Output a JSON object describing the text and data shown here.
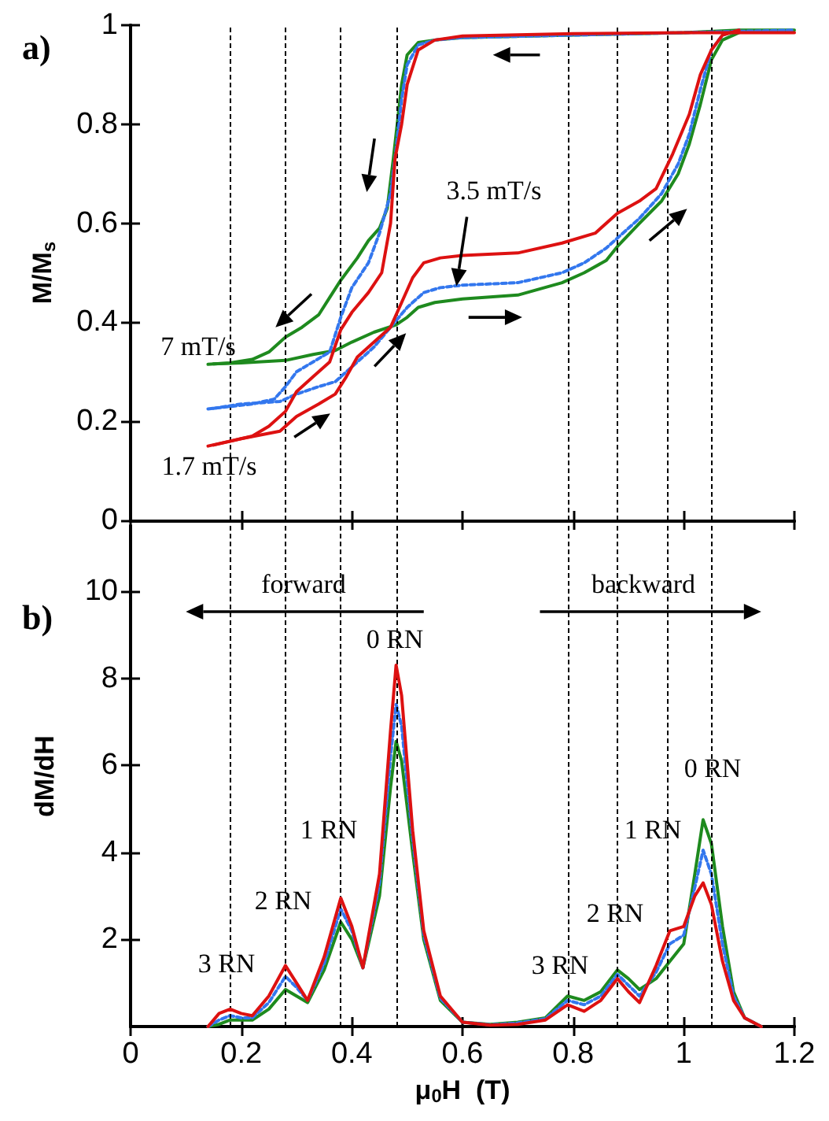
{
  "chart_data": [
    {
      "type": "line",
      "ylabel": "M/M$_{s}$",
      "xlim": [
        0,
        1.2
      ],
      "xticks": [
        0,
        0.2,
        0.4,
        0.6,
        0.8,
        1,
        1.2
      ],
      "ylim": [
        0,
        1
      ],
      "yticks": [
        0,
        0.2,
        0.4,
        0.6,
        0.8,
        1
      ],
      "tick_labels": "y",
      "series": [
        {
          "color": "#1e8a1e",
          "line_style": "solid",
          "x": [
            0.14,
            0.18,
            0.22,
            0.25,
            0.28,
            0.31,
            0.34,
            0.36,
            0.38,
            0.41,
            0.43,
            0.45,
            0.464,
            0.475,
            0.49,
            0.5,
            0.52,
            0.55,
            0.6,
            0.8,
            1.0,
            1.1,
            1.2
          ],
          "values": [
            0.315,
            0.318,
            0.325,
            0.34,
            0.37,
            0.39,
            0.415,
            0.45,
            0.485,
            0.53,
            0.565,
            0.59,
            0.63,
            0.73,
            0.88,
            0.94,
            0.965,
            0.97,
            0.975,
            0.98,
            0.985,
            0.99,
            0.99
          ]
        },
        {
          "color": "#1e8a1e",
          "line_style": "solid",
          "x": [
            0.15,
            0.2,
            0.28,
            0.33,
            0.37,
            0.4,
            0.44,
            0.48,
            0.5,
            0.52,
            0.55,
            0.6,
            0.7,
            0.78,
            0.82,
            0.86,
            0.88,
            0.92,
            0.96,
            0.99,
            1.01,
            1.03,
            1.05,
            1.07,
            1.1
          ],
          "values": [
            0.316,
            0.318,
            0.323,
            0.335,
            0.343,
            0.36,
            0.38,
            0.395,
            0.41,
            0.43,
            0.44,
            0.447,
            0.455,
            0.48,
            0.5,
            0.525,
            0.553,
            0.6,
            0.645,
            0.7,
            0.76,
            0.84,
            0.93,
            0.97,
            0.985
          ]
        },
        {
          "color": "#3377ee",
          "line_style": "dashed",
          "x": [
            0.14,
            0.18,
            0.22,
            0.26,
            0.28,
            0.3,
            0.33,
            0.36,
            0.38,
            0.4,
            0.43,
            0.45,
            0.47,
            0.48,
            0.49,
            0.5,
            0.52,
            0.55,
            0.6,
            0.8,
            1.0,
            1.2
          ],
          "values": [
            0.225,
            0.23,
            0.235,
            0.245,
            0.27,
            0.3,
            0.32,
            0.34,
            0.41,
            0.47,
            0.52,
            0.58,
            0.66,
            0.75,
            0.85,
            0.92,
            0.96,
            0.97,
            0.975,
            0.98,
            0.985,
            0.99
          ]
        },
        {
          "color": "#3377ee",
          "line_style": "dashed",
          "x": [
            0.15,
            0.2,
            0.27,
            0.3,
            0.34,
            0.37,
            0.4,
            0.44,
            0.47,
            0.5,
            0.53,
            0.56,
            0.6,
            0.7,
            0.78,
            0.82,
            0.86,
            0.88,
            0.92,
            0.96,
            0.99,
            1.01,
            1.03,
            1.05,
            1.07,
            1.1
          ],
          "values": [
            0.226,
            0.235,
            0.24,
            0.255,
            0.27,
            0.28,
            0.31,
            0.35,
            0.39,
            0.43,
            0.46,
            0.47,
            0.475,
            0.48,
            0.5,
            0.52,
            0.55,
            0.57,
            0.61,
            0.66,
            0.72,
            0.78,
            0.87,
            0.95,
            0.98,
            0.99
          ]
        },
        {
          "color": "#dd1111",
          "line_style": "solid",
          "x": [
            0.14,
            0.18,
            0.22,
            0.25,
            0.28,
            0.3,
            0.33,
            0.36,
            0.38,
            0.4,
            0.43,
            0.454,
            0.47,
            0.478,
            0.49,
            0.5,
            0.52,
            0.55,
            0.6,
            0.8,
            1.0,
            1.2
          ],
          "values": [
            0.15,
            0.16,
            0.17,
            0.19,
            0.22,
            0.26,
            0.29,
            0.32,
            0.385,
            0.42,
            0.46,
            0.5,
            0.6,
            0.73,
            0.8,
            0.88,
            0.95,
            0.97,
            0.978,
            0.983,
            0.985,
            0.985
          ]
        },
        {
          "color": "#dd1111",
          "line_style": "solid",
          "x": [
            0.15,
            0.2,
            0.27,
            0.3,
            0.34,
            0.37,
            0.39,
            0.41,
            0.44,
            0.47,
            0.49,
            0.51,
            0.53,
            0.56,
            0.6,
            0.7,
            0.78,
            0.84,
            0.88,
            0.92,
            0.95,
            0.98,
            1.01,
            1.03,
            1.05,
            1.07,
            1.1
          ],
          "values": [
            0.152,
            0.165,
            0.18,
            0.21,
            0.235,
            0.255,
            0.29,
            0.33,
            0.36,
            0.39,
            0.44,
            0.49,
            0.52,
            0.53,
            0.535,
            0.54,
            0.56,
            0.58,
            0.62,
            0.645,
            0.67,
            0.74,
            0.82,
            0.9,
            0.95,
            0.98,
            0.99
          ]
        }
      ],
      "ref_lines": [
        {
          "axis": "x",
          "value": 0.18,
          "color": "#000000",
          "line_style": "dashed"
        },
        {
          "axis": "x",
          "value": 0.28,
          "color": "#000000",
          "line_style": "dashed"
        },
        {
          "axis": "x",
          "value": 0.38,
          "color": "#000000",
          "line_style": "dashed"
        },
        {
          "axis": "x",
          "value": 0.48,
          "color": "#000000",
          "line_style": "dashed"
        },
        {
          "axis": "x",
          "value": 0.79,
          "color": "#000000",
          "line_style": "dashed"
        },
        {
          "axis": "x",
          "value": 0.88,
          "color": "#000000",
          "line_style": "dashed"
        },
        {
          "axis": "x",
          "value": 0.97,
          "color": "#000000",
          "line_style": "dashed"
        },
        {
          "axis": "x",
          "value": 1.05,
          "color": "#000000",
          "line_style": "dashed"
        }
      ],
      "annotations": [
        "a)",
        "7 mT/s",
        "1.7 mT/s",
        "3.5 mT/s"
      ]
    },
    {
      "type": "line",
      "ylabel": "dM/dH",
      "xlabel": "μ$_{0}$H  (T)",
      "xlim": [
        0,
        1.2
      ],
      "xticks": [
        0,
        0.2,
        0.4,
        0.6,
        0.8,
        1,
        1.2
      ],
      "ylim": [
        0,
        11.5
      ],
      "yticks": [
        2,
        4,
        6,
        8,
        10
      ],
      "series": [
        {
          "color": "#1e8a1e",
          "line_style": "solid",
          "x": [
            0.14,
            0.16,
            0.18,
            0.2,
            0.22,
            0.25,
            0.28,
            0.3,
            0.32,
            0.35,
            0.38,
            0.4,
            0.42,
            0.45,
            0.47,
            0.48,
            0.49,
            0.51,
            0.53,
            0.56,
            0.6,
            0.65,
            0.7,
            0.75,
            0.79,
            0.82,
            0.85,
            0.88,
            0.9,
            0.92,
            0.95,
            0.975,
            1.0,
            1.02,
            1.035,
            1.05,
            1.07,
            1.09,
            1.11,
            1.14
          ],
          "values": [
            0,
            0.05,
            0.15,
            0.15,
            0.15,
            0.4,
            0.85,
            0.7,
            0.55,
            1.3,
            2.4,
            2.0,
            1.35,
            3.0,
            5.5,
            6.55,
            6.1,
            4.0,
            2.0,
            0.6,
            0.1,
            0.05,
            0.1,
            0.2,
            0.7,
            0.6,
            0.8,
            1.3,
            1.1,
            0.85,
            1.1,
            1.5,
            1.9,
            3.5,
            4.75,
            4.2,
            2.3,
            0.8,
            0.2,
            0
          ]
        },
        {
          "color": "#3377ee",
          "line_style": "dashed",
          "x": [
            0.14,
            0.16,
            0.18,
            0.2,
            0.22,
            0.25,
            0.28,
            0.3,
            0.32,
            0.35,
            0.38,
            0.4,
            0.42,
            0.45,
            0.47,
            0.48,
            0.49,
            0.51,
            0.53,
            0.56,
            0.6,
            0.65,
            0.7,
            0.75,
            0.79,
            0.82,
            0.85,
            0.88,
            0.9,
            0.92,
            0.95,
            0.975,
            1.0,
            1.02,
            1.035,
            1.05,
            1.07,
            1.09,
            1.11,
            1.14
          ],
          "values": [
            0,
            0.15,
            0.25,
            0.2,
            0.2,
            0.55,
            1.15,
            0.9,
            0.6,
            1.45,
            2.7,
            2.2,
            1.35,
            3.3,
            6.2,
            7.4,
            6.9,
            4.3,
            2.1,
            0.65,
            0.1,
            0.04,
            0.08,
            0.18,
            0.6,
            0.5,
            0.7,
            1.2,
            0.95,
            0.7,
            1.25,
            1.9,
            2.1,
            3.2,
            4.05,
            3.5,
            1.9,
            0.7,
            0.2,
            0
          ]
        },
        {
          "color": "#dd1111",
          "line_style": "solid",
          "x": [
            0.14,
            0.16,
            0.18,
            0.2,
            0.22,
            0.25,
            0.28,
            0.3,
            0.32,
            0.35,
            0.38,
            0.4,
            0.42,
            0.45,
            0.47,
            0.48,
            0.49,
            0.51,
            0.53,
            0.56,
            0.6,
            0.65,
            0.7,
            0.75,
            0.79,
            0.82,
            0.85,
            0.88,
            0.9,
            0.92,
            0.95,
            0.975,
            1.0,
            1.02,
            1.035,
            1.05,
            1.07,
            1.09,
            1.11,
            1.14
          ],
          "values": [
            0,
            0.3,
            0.4,
            0.3,
            0.25,
            0.7,
            1.4,
            1.0,
            0.6,
            1.6,
            2.95,
            2.3,
            1.35,
            3.5,
            6.8,
            8.3,
            7.6,
            4.5,
            2.2,
            0.7,
            0.1,
            0.03,
            0.05,
            0.15,
            0.5,
            0.35,
            0.6,
            1.1,
            0.8,
            0.55,
            1.4,
            2.2,
            2.3,
            3.0,
            3.3,
            2.8,
            1.5,
            0.6,
            0.2,
            0
          ]
        }
      ],
      "ref_lines": [
        {
          "axis": "x",
          "value": 0.18,
          "color": "#000000",
          "line_style": "dashed"
        },
        {
          "axis": "x",
          "value": 0.28,
          "color": "#000000",
          "line_style": "dashed"
        },
        {
          "axis": "x",
          "value": 0.38,
          "color": "#000000",
          "line_style": "dashed"
        },
        {
          "axis": "x",
          "value": 0.48,
          "color": "#000000",
          "line_style": "dashed"
        },
        {
          "axis": "x",
          "value": 0.79,
          "color": "#000000",
          "line_style": "dashed"
        },
        {
          "axis": "x",
          "value": 0.88,
          "color": "#000000",
          "line_style": "dashed"
        },
        {
          "axis": "x",
          "value": 0.97,
          "color": "#000000",
          "line_style": "dashed"
        },
        {
          "axis": "x",
          "value": 1.05,
          "color": "#000000",
          "line_style": "dashed"
        }
      ],
      "annotations": [
        "b)",
        "forward",
        "backward",
        "3 RN",
        "2 RN",
        "1 RN",
        "0 RN",
        "3 RN",
        "2 RN",
        "1 RN",
        "0 RN"
      ]
    }
  ]
}
